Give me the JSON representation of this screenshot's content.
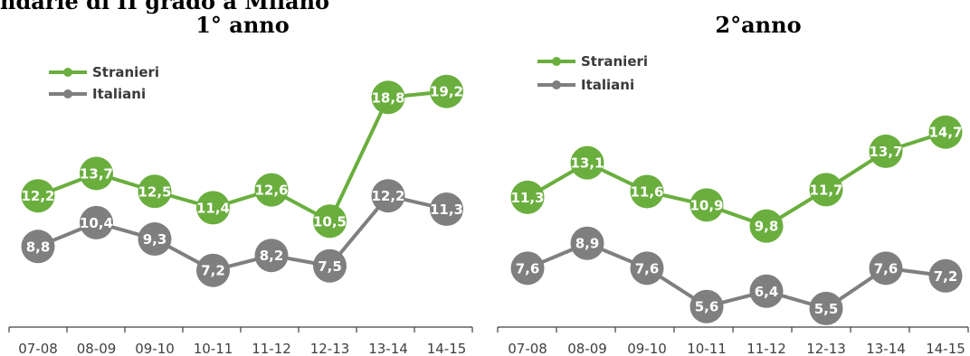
{
  "page": {
    "title": "ndarie di II grado a Milano"
  },
  "colors": {
    "stranieri": "#6aae3e",
    "italiani": "#7f7f7f",
    "axis": "#404040"
  },
  "chart_data": [
    {
      "type": "line",
      "title": "1° anno",
      "categories": [
        "07-08",
        "08-09",
        "09-10",
        "10-11",
        "11-12",
        "12-13",
        "13-14",
        "14-15"
      ],
      "series": [
        {
          "name": "Stranieri",
          "values": [
            12.2,
            13.7,
            12.5,
            11.4,
            12.6,
            10.5,
            18.8,
            19.2
          ],
          "labels": [
            "12,2",
            "13,7",
            "12,5",
            "11,4",
            "12,6",
            "10,5",
            "18,8",
            "19,2"
          ]
        },
        {
          "name": "Italiani",
          "values": [
            8.8,
            10.4,
            9.3,
            7.2,
            8.2,
            7.5,
            12.2,
            11.3
          ],
          "labels": [
            "8,8",
            "10,4",
            "9,3",
            "7,2",
            "8,2",
            "7,5",
            "12,2",
            "11,3"
          ]
        }
      ],
      "xlabel": "",
      "ylabel": "",
      "ylim": [
        0,
        22
      ],
      "legend": "top-left",
      "grid": false
    },
    {
      "type": "line",
      "title": "2°anno",
      "categories": [
        "07-08",
        "08-09",
        "09-10",
        "10-11",
        "11-12",
        "12-13",
        "13-14",
        "14-15"
      ],
      "series": [
        {
          "name": "Stranieri",
          "values": [
            11.3,
            13.1,
            11.6,
            10.9,
            9.8,
            11.7,
            13.7,
            14.7
          ],
          "labels": [
            "11,3",
            "13,1",
            "11,6",
            "10,9",
            "9,8",
            "11,7",
            "13,7",
            "14,7"
          ]
        },
        {
          "name": "Italiani",
          "values": [
            7.6,
            8.9,
            7.6,
            5.6,
            6.4,
            5.5,
            7.6,
            7.2
          ],
          "labels": [
            "7,6",
            "8,9",
            "7,6",
            "5,6",
            "6,4",
            "5,5",
            "7,6",
            "7,2"
          ]
        }
      ],
      "xlabel": "",
      "ylabel": "",
      "ylim": [
        2.5,
        19
      ],
      "legend": "top-left",
      "grid": false
    }
  ]
}
